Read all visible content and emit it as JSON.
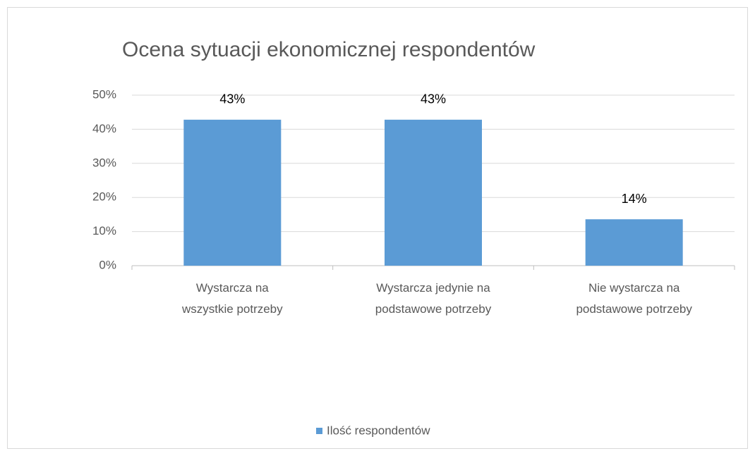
{
  "chart_data": {
    "type": "bar",
    "title": "Ocena sytuacji ekonomicznej respondentów",
    "categories": [
      "Wystarcza na wszystkie potrzeby",
      "Wystarcza jedynie na podstawowe potrzeby",
      "Nie wystarcza na podstawowe potrzeby"
    ],
    "series": [
      {
        "name": "Ilość respondentów",
        "color": "#5b9bd5",
        "values": [
          42.8,
          42.8,
          13.6
        ],
        "value_labels": [
          "43%",
          "43%",
          "14%"
        ]
      }
    ],
    "ylim": [
      0,
      50
    ],
    "yticks": [
      {
        "value": 0,
        "label": "0%"
      },
      {
        "value": 10,
        "label": "10%"
      },
      {
        "value": 20,
        "label": "20%"
      },
      {
        "value": 30,
        "label": "30%"
      },
      {
        "value": 40,
        "label": "40%"
      },
      {
        "value": 50,
        "label": "50%"
      }
    ],
    "grid": true,
    "legend": "bottom"
  }
}
